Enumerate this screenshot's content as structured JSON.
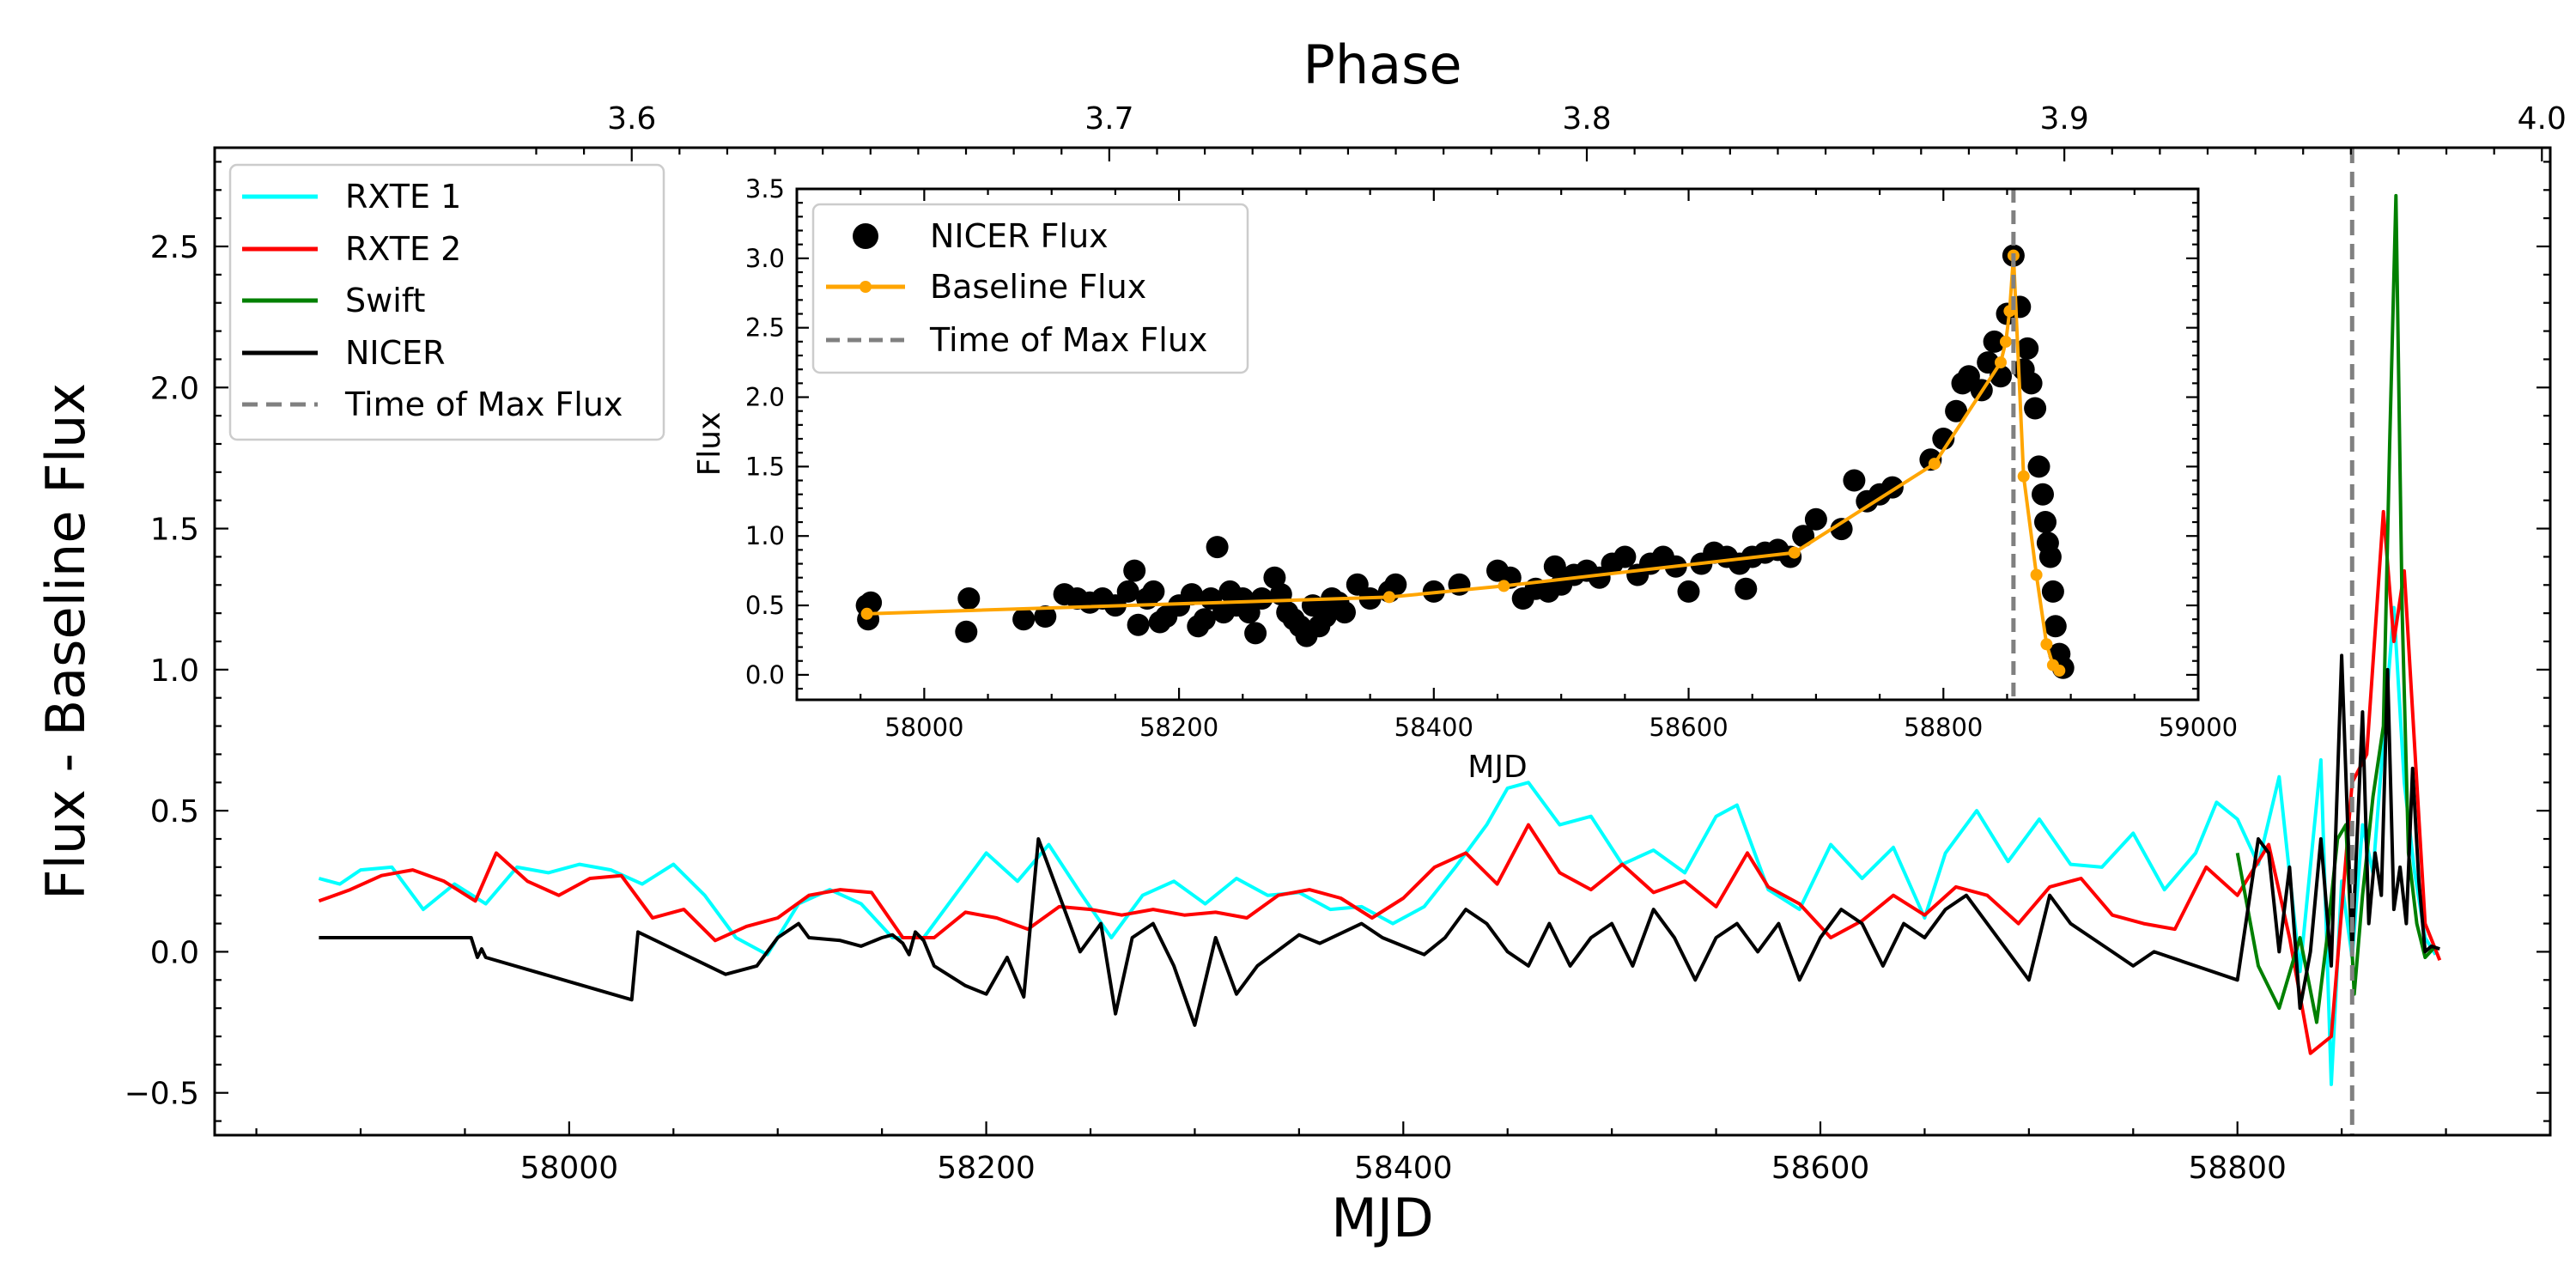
{
  "chart_data": [
    {
      "type": "line",
      "title": "",
      "xlabel": "MJD",
      "ylabel": "Flux - Baseline Flux",
      "top_xlabel": "Phase",
      "xlim": [
        57830,
        58950
      ],
      "ylim": [
        -0.65,
        2.85
      ],
      "x_ticks": [
        58000,
        58200,
        58400,
        58600,
        58800
      ],
      "y_ticks": [
        -0.5,
        0.0,
        0.5,
        1.0,
        1.5,
        2.0,
        2.5
      ],
      "x_tick_labels": [
        "58000",
        "58200",
        "58400",
        "58600",
        "58800"
      ],
      "y_tick_labels": [
        "−0.5",
        "0.0",
        "0.5",
        "1.0",
        "1.5",
        "2.0",
        "2.5"
      ],
      "top_ticks": [
        {
          "label": "3.6",
          "mjd": 58030
        },
        {
          "label": "3.7",
          "mjd": 58259
        },
        {
          "label": "3.8",
          "mjd": 58488
        },
        {
          "label": "3.9",
          "mjd": 58717
        },
        {
          "label": "4.0",
          "mjd": 58946
        }
      ],
      "vline_mjd": 58855,
      "legend_title": "",
      "legend": [
        "RXTE 1",
        "RXTE 2",
        "Swift",
        "NICER",
        "Time of Max Flux"
      ],
      "series": [
        {
          "name": "RXTE 1",
          "color": "#00ffff",
          "x": [
            57880,
            57890,
            57900,
            57915,
            57930,
            57945,
            57960,
            57975,
            57990,
            58005,
            58020,
            58035,
            58050,
            58065,
            58080,
            58095,
            58110,
            58125,
            58140,
            58155,
            58170,
            58185,
            58200,
            58215,
            58230,
            58245,
            58260,
            58275,
            58290,
            58305,
            58320,
            58335,
            58350,
            58365,
            58380,
            58395,
            58410,
            58425,
            58440,
            58450,
            58460,
            58475,
            58490,
            58505,
            58520,
            58535,
            58550,
            58560,
            58575,
            58590,
            58605,
            58620,
            58635,
            58650,
            58660,
            58675,
            58690,
            58705,
            58720,
            58735,
            58750,
            58765,
            58780,
            58790,
            58800,
            58810,
            58820,
            58830,
            58840,
            58845,
            58850,
            58855,
            58860,
            58865,
            58870,
            58875,
            58880,
            58885,
            58890,
            58895
          ],
          "y": [
            0.26,
            0.24,
            0.29,
            0.3,
            0.15,
            0.24,
            0.17,
            0.3,
            0.28,
            0.31,
            0.29,
            0.24,
            0.31,
            0.2,
            0.05,
            -0.01,
            0.17,
            0.22,
            0.17,
            0.05,
            0.05,
            0.2,
            0.35,
            0.25,
            0.38,
            0.21,
            0.05,
            0.2,
            0.25,
            0.17,
            0.26,
            0.2,
            0.21,
            0.15,
            0.16,
            0.1,
            0.16,
            0.3,
            0.45,
            0.58,
            0.6,
            0.45,
            0.48,
            0.31,
            0.36,
            0.28,
            0.48,
            0.52,
            0.22,
            0.15,
            0.38,
            0.26,
            0.37,
            0.12,
            0.35,
            0.5,
            0.32,
            0.47,
            0.31,
            0.3,
            0.42,
            0.22,
            0.35,
            0.53,
            0.47,
            0.31,
            0.62,
            -0.07,
            0.68,
            -0.47,
            0.25,
            -0.02,
            0.45,
            0.28,
            0.75,
            1.22,
            0.6,
            0.28,
            0.05,
            -0.01
          ]
        },
        {
          "name": "RXTE 2",
          "color": "#ff0000",
          "x": [
            57880,
            57895,
            57910,
            57925,
            57940,
            57955,
            57965,
            57980,
            57995,
            58010,
            58025,
            58040,
            58055,
            58070,
            58085,
            58100,
            58115,
            58130,
            58145,
            58160,
            58175,
            58190,
            58205,
            58220,
            58235,
            58250,
            58265,
            58280,
            58295,
            58310,
            58325,
            58340,
            58355,
            58370,
            58385,
            58400,
            58415,
            58430,
            58445,
            58460,
            58475,
            58490,
            58505,
            58520,
            58535,
            58550,
            58565,
            58575,
            58590,
            58605,
            58620,
            58635,
            58650,
            58665,
            58680,
            58695,
            58710,
            58725,
            58740,
            58755,
            58770,
            58785,
            58800,
            58815,
            58825,
            58835,
            58845,
            58855,
            58862,
            58870,
            58875,
            58880,
            58890,
            58897
          ],
          "y": [
            0.18,
            0.22,
            0.27,
            0.29,
            0.25,
            0.18,
            0.35,
            0.25,
            0.2,
            0.26,
            0.27,
            0.12,
            0.15,
            0.04,
            0.09,
            0.12,
            0.2,
            0.22,
            0.21,
            0.05,
            0.05,
            0.14,
            0.12,
            0.08,
            0.16,
            0.15,
            0.13,
            0.15,
            0.13,
            0.14,
            0.12,
            0.2,
            0.22,
            0.19,
            0.12,
            0.19,
            0.3,
            0.35,
            0.24,
            0.45,
            0.28,
            0.22,
            0.31,
            0.21,
            0.25,
            0.16,
            0.35,
            0.23,
            0.17,
            0.05,
            0.11,
            0.2,
            0.13,
            0.23,
            0.2,
            0.1,
            0.23,
            0.26,
            0.13,
            0.1,
            0.08,
            0.3,
            0.2,
            0.38,
            0.05,
            -0.36,
            -0.3,
            0.6,
            0.7,
            1.56,
            1.1,
            1.35,
            0.1,
            -0.03
          ]
        },
        {
          "name": "Swift",
          "color": "#008000",
          "x": [
            58800,
            58810,
            58820,
            58830,
            58838,
            58843,
            58848,
            58852,
            58856,
            58860,
            58865,
            58870,
            58873,
            58876,
            58879,
            58882,
            58886,
            58890,
            58895
          ],
          "y": [
            0.35,
            -0.05,
            -0.2,
            0.05,
            -0.25,
            0.05,
            0.4,
            0.45,
            -0.15,
            0.2,
            0.55,
            0.8,
            1.8,
            2.68,
            1.2,
            0.35,
            0.1,
            -0.02,
            0.02
          ]
        },
        {
          "name": "NICER",
          "color": "#000000",
          "x": [
            57880,
            57950,
            57953,
            57956,
            57958,
            57960,
            58030,
            58033,
            58075,
            58090,
            58100,
            58110,
            58115,
            58130,
            58140,
            58150,
            58155,
            58160,
            58163,
            58166,
            58170,
            58175,
            58190,
            58200,
            58210,
            58218,
            58225,
            58235,
            58245,
            58255,
            58262,
            58270,
            58280,
            58290,
            58300,
            58310,
            58320,
            58330,
            58350,
            58360,
            58380,
            58390,
            58400,
            58410,
            58420,
            58430,
            58440,
            58450,
            58460,
            58470,
            58480,
            58490,
            58500,
            58510,
            58520,
            58530,
            58540,
            58550,
            58560,
            58570,
            58580,
            58590,
            58600,
            58610,
            58620,
            58630,
            58640,
            58650,
            58660,
            58670,
            58680,
            58690,
            58700,
            58710,
            58720,
            58730,
            58740,
            58750,
            58760,
            58780,
            58800,
            58810,
            58815,
            58820,
            58825,
            58830,
            58835,
            58840,
            58845,
            58850,
            58855,
            58860,
            58863,
            58866,
            58869,
            58872,
            58875,
            58878,
            58881,
            58884,
            58887,
            58890,
            58893,
            58897
          ],
          "y": [
            0.05,
            0.05,
            0.05,
            -0.02,
            0.01,
            -0.02,
            -0.17,
            0.07,
            -0.08,
            -0.05,
            0.05,
            0.1,
            0.05,
            0.04,
            0.02,
            0.05,
            0.06,
            0.03,
            -0.01,
            0.07,
            0.04,
            -0.05,
            -0.12,
            -0.15,
            -0.02,
            -0.16,
            0.4,
            0.2,
            0.0,
            0.1,
            -0.22,
            0.05,
            0.1,
            -0.05,
            -0.26,
            0.05,
            -0.15,
            -0.05,
            0.06,
            0.03,
            0.1,
            0.05,
            0.02,
            -0.01,
            0.05,
            0.15,
            0.1,
            0.0,
            -0.05,
            0.1,
            -0.05,
            0.05,
            0.1,
            -0.05,
            0.15,
            0.05,
            -0.1,
            0.05,
            0.1,
            0.0,
            0.1,
            -0.1,
            0.05,
            0.15,
            0.1,
            -0.05,
            0.1,
            0.05,
            0.15,
            0.2,
            0.1,
            0.0,
            -0.1,
            0.2,
            0.1,
            0.05,
            0.0,
            -0.05,
            0.0,
            -0.05,
            -0.1,
            0.4,
            0.35,
            0.0,
            0.3,
            -0.2,
            0.0,
            0.4,
            -0.05,
            1.05,
            0.0,
            0.85,
            0.1,
            0.35,
            0.2,
            1.0,
            0.15,
            0.3,
            0.1,
            0.65,
            0.25,
            0.0,
            0.02,
            0.01
          ]
        }
      ]
    },
    {
      "type": "scatter",
      "title": "",
      "xlabel": "MJD",
      "ylabel": "Flux",
      "xlim": [
        57900,
        59000
      ],
      "ylim": [
        -0.18,
        3.5
      ],
      "x_ticks": [
        58000,
        58200,
        58400,
        58600,
        58800,
        59000
      ],
      "y_ticks": [
        0.0,
        0.5,
        1.0,
        1.5,
        2.0,
        2.5,
        3.0,
        3.5
      ],
      "x_tick_labels": [
        "58000",
        "58200",
        "58400",
        "58600",
        "58800",
        "59000"
      ],
      "y_tick_labels": [
        "0.0",
        "0.5",
        "1.0",
        "1.5",
        "2.0",
        "2.5",
        "3.0",
        "3.5"
      ],
      "vline_mjd": 58855,
      "legend_title": "",
      "legend": [
        "NICER Flux",
        "Baseline Flux",
        "Time of Max Flux"
      ],
      "series": [
        {
          "name": "NICER Flux",
          "color": "#000000",
          "x": [
            57955,
            57956,
            57958,
            58033,
            58035,
            58078,
            58095,
            58110,
            58120,
            58130,
            58140,
            58150,
            58160,
            58165,
            58168,
            58175,
            58180,
            58185,
            58190,
            58200,
            58210,
            58215,
            58220,
            58225,
            58230,
            58235,
            58240,
            58245,
            58250,
            58255,
            58260,
            58265,
            58275,
            58280,
            58285,
            58290,
            58295,
            58300,
            58305,
            58310,
            58315,
            58320,
            58325,
            58330,
            58340,
            58350,
            58365,
            58370,
            58400,
            58420,
            58450,
            58460,
            58470,
            58480,
            58490,
            58495,
            58500,
            58510,
            58520,
            58530,
            58540,
            58550,
            58560,
            58570,
            58580,
            58590,
            58600,
            58610,
            58620,
            58630,
            58640,
            58645,
            58650,
            58660,
            58670,
            58680,
            58690,
            58700,
            58720,
            58730,
            58740,
            58750,
            58760,
            58790,
            58800,
            58810,
            58815,
            58820,
            58830,
            58835,
            58840,
            58845,
            58850,
            58855,
            58860,
            58863,
            58866,
            58869,
            58872,
            58875,
            58878,
            58880,
            58882,
            58884,
            58886,
            58888,
            58891,
            58894
          ],
          "y": [
            0.5,
            0.4,
            0.52,
            0.31,
            0.55,
            0.4,
            0.42,
            0.58,
            0.55,
            0.52,
            0.55,
            0.5,
            0.6,
            0.75,
            0.36,
            0.55,
            0.6,
            0.38,
            0.42,
            0.5,
            0.58,
            0.35,
            0.4,
            0.55,
            0.92,
            0.45,
            0.6,
            0.5,
            0.55,
            0.45,
            0.3,
            0.55,
            0.7,
            0.58,
            0.45,
            0.4,
            0.35,
            0.28,
            0.5,
            0.35,
            0.42,
            0.55,
            0.52,
            0.45,
            0.65,
            0.55,
            0.6,
            0.65,
            0.6,
            0.65,
            0.75,
            0.7,
            0.55,
            0.62,
            0.6,
            0.78,
            0.65,
            0.72,
            0.75,
            0.7,
            0.8,
            0.85,
            0.72,
            0.8,
            0.85,
            0.78,
            0.6,
            0.8,
            0.88,
            0.85,
            0.8,
            0.62,
            0.85,
            0.88,
            0.9,
            0.85,
            1.0,
            1.12,
            1.05,
            1.4,
            1.25,
            1.3,
            1.35,
            1.55,
            1.7,
            1.9,
            2.1,
            2.15,
            2.05,
            2.25,
            2.4,
            2.15,
            2.6,
            3.02,
            2.65,
            2.2,
            2.35,
            2.1,
            1.92,
            1.5,
            1.3,
            1.1,
            0.95,
            0.85,
            0.6,
            0.35,
            0.15,
            0.05
          ]
        },
        {
          "name": "Baseline Flux",
          "color": "#ffa500",
          "x": [
            57955,
            58365,
            58455,
            58683,
            58793,
            58845,
            58849,
            58852,
            58855,
            58863,
            58873,
            58881,
            58886,
            58891
          ],
          "y": [
            0.44,
            0.56,
            0.64,
            0.88,
            1.52,
            2.25,
            2.4,
            2.62,
            3.02,
            1.43,
            0.72,
            0.22,
            0.07,
            0.03
          ]
        }
      ]
    }
  ]
}
